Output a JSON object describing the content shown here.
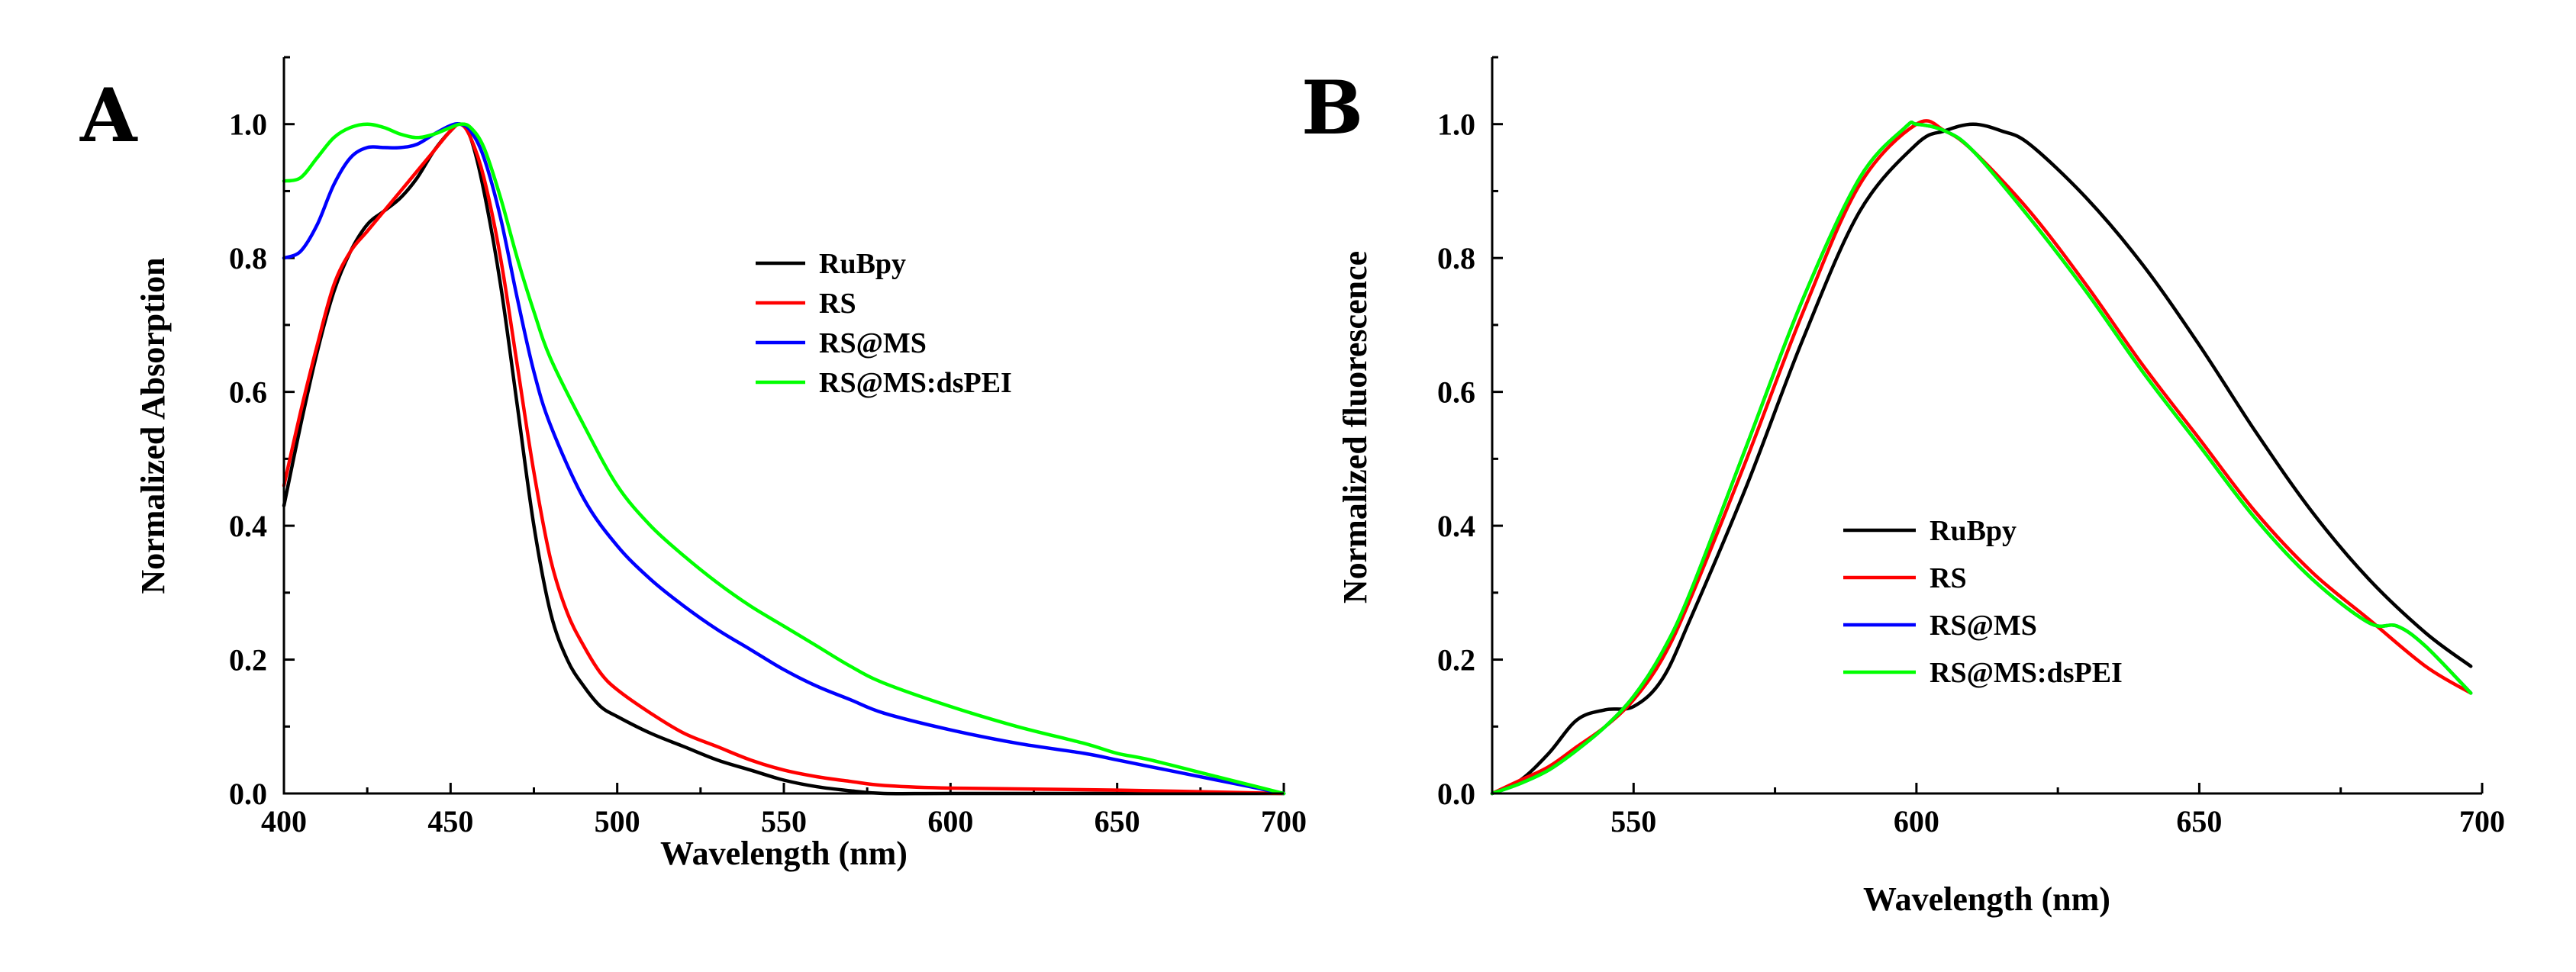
{
  "chart_data": [
    {
      "type": "line",
      "panel": "A",
      "title": "",
      "xlabel": "Wavelength (nm)",
      "ylabel": "Normalized Absorption",
      "xlim": [
        400,
        700
      ],
      "ylim": [
        0,
        1.1
      ],
      "xticks": [
        400,
        450,
        500,
        550,
        600,
        650,
        700
      ],
      "yticks": [
        0.0,
        0.2,
        0.4,
        0.6,
        0.8,
        1.0
      ],
      "xtick_labels": [
        "400",
        "450",
        "500",
        "550",
        "600",
        "650",
        "700"
      ],
      "ytick_labels": [
        "0.0",
        "0.2",
        "0.4",
        "0.6",
        "0.8",
        "1.0"
      ],
      "legend_position": "center-right",
      "series": [
        {
          "name": "RuBpy",
          "color": "#000000",
          "x": [
            400,
            405,
            410,
            415,
            420,
            425,
            430,
            435,
            440,
            445,
            450,
            453,
            456,
            460,
            465,
            470,
            475,
            480,
            485,
            490,
            495,
            500,
            510,
            520,
            530,
            540,
            550,
            560,
            570,
            580,
            600,
            650,
            700
          ],
          "y": [
            0.43,
            0.55,
            0.66,
            0.75,
            0.81,
            0.85,
            0.87,
            0.89,
            0.92,
            0.96,
            0.99,
            1.0,
            0.98,
            0.9,
            0.76,
            0.58,
            0.4,
            0.27,
            0.2,
            0.16,
            0.13,
            0.115,
            0.09,
            0.07,
            0.05,
            0.035,
            0.02,
            0.01,
            0.004,
            0.0,
            0.0,
            0.0,
            0.0
          ]
        },
        {
          "name": "RS",
          "color": "#ff0000",
          "x": [
            400,
            405,
            410,
            415,
            420,
            425,
            430,
            435,
            440,
            445,
            450,
            453,
            456,
            460,
            465,
            470,
            475,
            480,
            485,
            490,
            495,
            500,
            510,
            520,
            530,
            540,
            550,
            560,
            570,
            580,
            600,
            650,
            700
          ],
          "y": [
            0.46,
            0.57,
            0.67,
            0.76,
            0.81,
            0.84,
            0.87,
            0.9,
            0.93,
            0.96,
            0.99,
            1.0,
            0.98,
            0.92,
            0.8,
            0.64,
            0.48,
            0.35,
            0.27,
            0.22,
            0.18,
            0.155,
            0.12,
            0.09,
            0.07,
            0.05,
            0.035,
            0.025,
            0.018,
            0.012,
            0.008,
            0.005,
            0.0
          ]
        },
        {
          "name": "RS@MS",
          "color": "#0000ff",
          "x": [
            400,
            405,
            410,
            415,
            420,
            425,
            430,
            435,
            440,
            445,
            450,
            453,
            456,
            460,
            465,
            470,
            475,
            480,
            490,
            500,
            510,
            520,
            530,
            540,
            550,
            560,
            570,
            580,
            600,
            620,
            640,
            650,
            660,
            680,
            700
          ],
          "y": [
            0.8,
            0.81,
            0.85,
            0.91,
            0.95,
            0.965,
            0.965,
            0.965,
            0.97,
            0.985,
            0.998,
            1.0,
            0.99,
            0.95,
            0.86,
            0.74,
            0.63,
            0.55,
            0.44,
            0.37,
            0.32,
            0.28,
            0.245,
            0.215,
            0.185,
            0.16,
            0.14,
            0.12,
            0.095,
            0.075,
            0.06,
            0.05,
            0.04,
            0.02,
            0.0
          ]
        },
        {
          "name": "RS@MS:dsPEI",
          "color": "#00ff00",
          "x": [
            400,
            405,
            410,
            415,
            420,
            425,
            430,
            435,
            440,
            445,
            450,
            453,
            456,
            460,
            465,
            470,
            475,
            480,
            490,
            500,
            510,
            520,
            530,
            540,
            550,
            560,
            570,
            580,
            600,
            620,
            640,
            650,
            660,
            680,
            700
          ],
          "y": [
            0.915,
            0.92,
            0.95,
            0.98,
            0.995,
            1.0,
            0.995,
            0.985,
            0.98,
            0.985,
            0.995,
            1.0,
            0.995,
            0.965,
            0.89,
            0.8,
            0.72,
            0.65,
            0.55,
            0.46,
            0.4,
            0.355,
            0.315,
            0.28,
            0.25,
            0.22,
            0.19,
            0.165,
            0.13,
            0.1,
            0.075,
            0.06,
            0.05,
            0.025,
            0.0
          ]
        }
      ]
    },
    {
      "type": "line",
      "panel": "B",
      "title": "",
      "xlabel": "Wavelength (nm)",
      "ylabel": "Normalized fluorescence",
      "xlim": [
        525,
        700
      ],
      "ylim": [
        0,
        1.1
      ],
      "xticks": [
        550,
        600,
        650,
        700
      ],
      "yticks": [
        0.0,
        0.2,
        0.4,
        0.6,
        0.8,
        1.0
      ],
      "xtick_labels": [
        "550",
        "600",
        "650",
        "700"
      ],
      "ytick_labels": [
        "0.0",
        "0.2",
        "0.4",
        "0.6",
        "0.8",
        "1.0"
      ],
      "legend_position": "center",
      "series": [
        {
          "name": "RuBpy",
          "color": "#000000",
          "x": [
            525,
            530,
            535,
            540,
            545,
            550,
            555,
            560,
            570,
            580,
            590,
            600,
            605,
            610,
            615,
            620,
            630,
            640,
            650,
            660,
            670,
            680,
            690,
            698
          ],
          "y": [
            0.0,
            0.02,
            0.06,
            0.11,
            0.125,
            0.13,
            0.17,
            0.26,
            0.46,
            0.68,
            0.87,
            0.97,
            0.99,
            1.0,
            0.99,
            0.97,
            0.89,
            0.79,
            0.67,
            0.54,
            0.42,
            0.32,
            0.24,
            0.19
          ]
        },
        {
          "name": "RS",
          "color": "#ff0000",
          "x": [
            525,
            530,
            535,
            540,
            545,
            550,
            555,
            560,
            570,
            580,
            590,
            600,
            605,
            610,
            620,
            630,
            640,
            650,
            660,
            670,
            680,
            690,
            698
          ],
          "y": [
            0.0,
            0.02,
            0.04,
            0.07,
            0.1,
            0.14,
            0.2,
            0.29,
            0.5,
            0.72,
            0.91,
            1.0,
            0.99,
            0.96,
            0.87,
            0.76,
            0.64,
            0.53,
            0.42,
            0.33,
            0.26,
            0.19,
            0.15
          ]
        },
        {
          "name": "RS@MS",
          "color": "#0000ff",
          "x": [
            525,
            530,
            535,
            540,
            545,
            550,
            555,
            560,
            570,
            580,
            590,
            598,
            600,
            605,
            610,
            620,
            630,
            640,
            650,
            660,
            670,
            680,
            685,
            690,
            698
          ],
          "y": [
            0.0,
            0.015,
            0.035,
            0.065,
            0.1,
            0.145,
            0.21,
            0.3,
            0.52,
            0.74,
            0.92,
            0.995,
            1.0,
            0.99,
            0.96,
            0.86,
            0.75,
            0.63,
            0.52,
            0.41,
            0.32,
            0.255,
            0.25,
            0.22,
            0.15
          ]
        },
        {
          "name": "RS@MS:dsPEI",
          "color": "#00ff00",
          "x": [
            525,
            530,
            535,
            540,
            545,
            550,
            555,
            560,
            570,
            580,
            590,
            598,
            600,
            605,
            610,
            620,
            630,
            640,
            650,
            660,
            670,
            680,
            685,
            690,
            698
          ],
          "y": [
            0.0,
            0.015,
            0.035,
            0.065,
            0.1,
            0.145,
            0.21,
            0.3,
            0.52,
            0.74,
            0.92,
            0.995,
            1.0,
            0.99,
            0.96,
            0.86,
            0.75,
            0.63,
            0.52,
            0.41,
            0.32,
            0.255,
            0.25,
            0.22,
            0.15
          ]
        }
      ]
    }
  ]
}
